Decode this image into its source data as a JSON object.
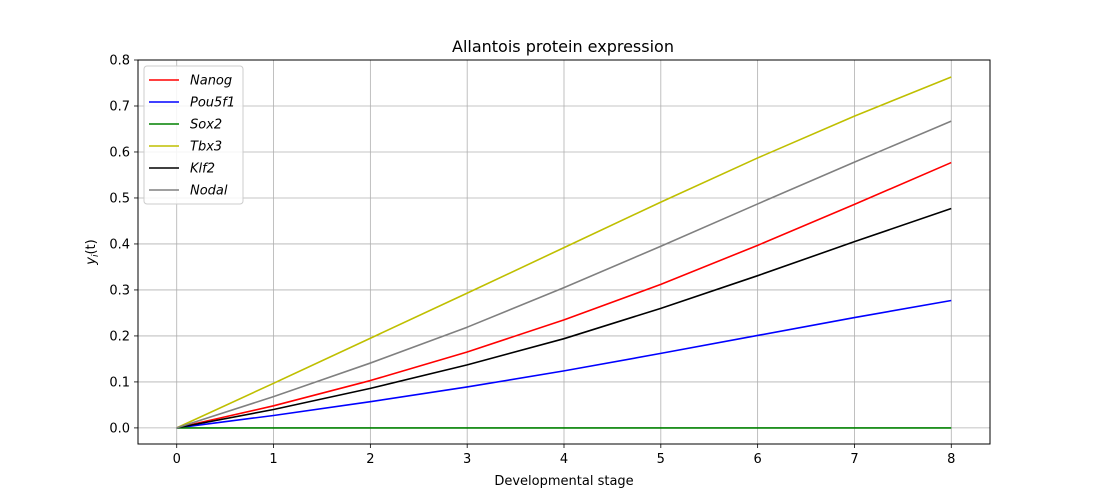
{
  "chart_data": {
    "type": "line",
    "title": "Allantois protein expression",
    "xlabel": "Developmental stage",
    "ylabel": "y_i(t)",
    "xlim": [
      -0.4,
      8.4
    ],
    "ylim": [
      -0.035,
      0.8
    ],
    "xticks": [
      0,
      1,
      2,
      3,
      4,
      5,
      6,
      7,
      8
    ],
    "yticks": [
      0.0,
      0.1,
      0.2,
      0.3,
      0.4,
      0.5,
      0.6,
      0.7,
      0.8
    ],
    "xtick_labels": [
      "0",
      "1",
      "2",
      "3",
      "4",
      "5",
      "6",
      "7",
      "8"
    ],
    "ytick_labels": [
      "0.0",
      "0.1",
      "0.2",
      "0.3",
      "0.4",
      "0.5",
      "0.6",
      "0.7",
      "0.8"
    ],
    "grid": true,
    "legend_position": "top-left",
    "x": [
      0,
      1,
      2,
      3,
      4,
      5,
      6,
      7,
      8
    ],
    "series": [
      {
        "name": "Nanog",
        "color": "#ff0000",
        "values": [
          0,
          0.048,
          0.103,
          0.165,
          0.235,
          0.312,
          0.397,
          0.486,
          0.577
        ]
      },
      {
        "name": "Pou5f1",
        "color": "#0000ff",
        "values": [
          0,
          0.027,
          0.057,
          0.089,
          0.124,
          0.162,
          0.201,
          0.24,
          0.277
        ]
      },
      {
        "name": "Sox2",
        "color": "#008000",
        "values": [
          0,
          0,
          0,
          0,
          0,
          0,
          0,
          0,
          0
        ]
      },
      {
        "name": "Tbx3",
        "color": "#bfbf00",
        "values": [
          0,
          0.097,
          0.195,
          0.293,
          0.392,
          0.491,
          0.587,
          0.678,
          0.763
        ]
      },
      {
        "name": "Klf2",
        "color": "#000000",
        "values": [
          0,
          0.04,
          0.086,
          0.137,
          0.194,
          0.26,
          0.331,
          0.405,
          0.477
        ]
      },
      {
        "name": "Nodal",
        "color": "#808080",
        "values": [
          0,
          0.068,
          0.141,
          0.219,
          0.305,
          0.395,
          0.487,
          0.578,
          0.667
        ]
      }
    ]
  }
}
